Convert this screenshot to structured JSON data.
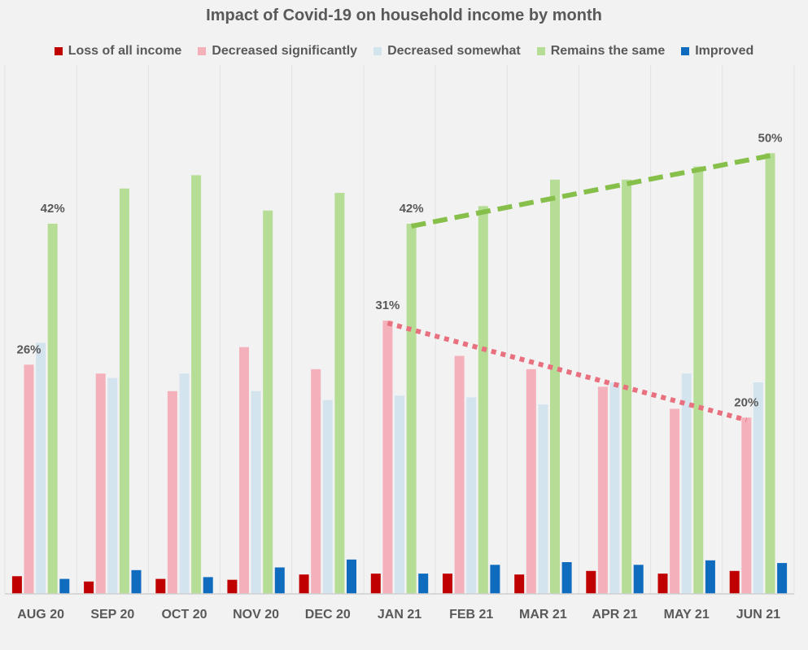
{
  "chart_data": {
    "type": "bar",
    "title": "Impact of Covid-19 on household income by month",
    "categories": [
      "AUG 20",
      "SEP 20",
      "OCT 20",
      "NOV 20",
      "DEC 20",
      "JAN 21",
      "FEB 21",
      "MAR 21",
      "APR 21",
      "MAY 21",
      "JUN 21"
    ],
    "series": [
      {
        "name": "Loss of all income",
        "color": "#c00000",
        "values": [
          2.0,
          1.4,
          1.7,
          1.6,
          2.2,
          2.3,
          2.3,
          2.2,
          2.6,
          2.3,
          2.6
        ]
      },
      {
        "name": "Decreased significantly",
        "color": "#f4b0bb",
        "values": [
          26,
          25,
          23,
          28,
          25.5,
          31,
          27,
          25.5,
          23.5,
          21,
          20
        ]
      },
      {
        "name": "Decreased somewhat",
        "color": "#d4e4ee",
        "values": [
          28.5,
          24.5,
          25,
          23,
          22,
          22.5,
          22.3,
          21.5,
          24,
          25,
          24
        ]
      },
      {
        "name": "Remains the same",
        "color": "#b6dd95",
        "values": [
          42,
          46,
          47.5,
          43.5,
          45.5,
          42,
          44,
          47,
          47,
          48.5,
          50
        ]
      },
      {
        "name": "Improved",
        "color": "#0e6bbe",
        "values": [
          1.7,
          2.7,
          1.9,
          3.0,
          3.9,
          2.3,
          3.3,
          3.6,
          3.3,
          3.8,
          3.5
        ]
      }
    ],
    "ylim": [
      0,
      60
    ],
    "grid": true,
    "legend_position": "top",
    "annotations": [
      {
        "category": "AUG 20",
        "series": "Decreased significantly",
        "text": "26%"
      },
      {
        "category": "AUG 20",
        "series": "Remains the same",
        "text": "42%"
      },
      {
        "category": "JAN 21",
        "series": "Decreased significantly",
        "text": "31%"
      },
      {
        "category": "JAN 21",
        "series": "Remains the same",
        "text": "42%"
      },
      {
        "category": "JUN 21",
        "series": "Decreased significantly",
        "text": "20%"
      },
      {
        "category": "JUN 21",
        "series": "Remains the same",
        "text": "50%"
      }
    ],
    "trend_lines": [
      {
        "series": "Remains the same",
        "from": "JAN 21",
        "to": "JUN 21",
        "color": "#86bf4a",
        "style": "dashed"
      },
      {
        "series": "Decreased significantly",
        "from": "JAN 21",
        "to": "JUN 21",
        "color": "#e8707f",
        "style": "dotted"
      }
    ]
  }
}
